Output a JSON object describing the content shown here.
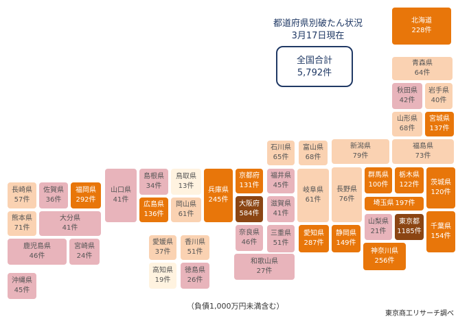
{
  "title": {
    "line1": "都道府県別破たん状況",
    "line2": "3月17日現在"
  },
  "total": {
    "label": "全国合計",
    "value": "5,792件"
  },
  "note": "（負債1,000万円未満含む）",
  "source": "東京商工リサーチ調べ",
  "colors": {
    "light_orange": "#fad2b2",
    "pink": "#e8b4bb",
    "orange": "#e8760a",
    "brown": "#8b4513",
    "cream": "#fff3e0"
  },
  "prefs": {
    "hokkaido": {
      "name": "北海道",
      "count": "228件"
    },
    "aomori": {
      "name": "青森県",
      "count": "64件"
    },
    "akita": {
      "name": "秋田県",
      "count": "42件"
    },
    "iwate": {
      "name": "岩手県",
      "count": "40件"
    },
    "yamagata": {
      "name": "山形県",
      "count": "68件"
    },
    "miyagi": {
      "name": "宮城県",
      "count": "137件"
    },
    "niigata": {
      "name": "新潟県",
      "count": "79件"
    },
    "fukushima": {
      "name": "福島県",
      "count": "73件"
    },
    "ishikawa": {
      "name": "石川県",
      "count": "65件"
    },
    "toyama": {
      "name": "富山県",
      "count": "68件"
    },
    "fukui": {
      "name": "福井県",
      "count": "45件"
    },
    "gifu": {
      "name": "岐阜県",
      "count": "61件"
    },
    "nagano": {
      "name": "長野県",
      "count": "76件"
    },
    "gunma": {
      "name": "群馬県",
      "count": "100件"
    },
    "tochigi": {
      "name": "栃木県",
      "count": "122件"
    },
    "ibaraki": {
      "name": "茨城県",
      "count": "120件"
    },
    "saitama": {
      "name": "埼玉県",
      "count": "197件"
    },
    "yamanashi": {
      "name": "山梨県",
      "count": "21件"
    },
    "tokyo": {
      "name": "東京都",
      "count": "1185件"
    },
    "chiba": {
      "name": "千葉県",
      "count": "154件"
    },
    "kanagawa": {
      "name": "神奈川県",
      "count": "256件"
    },
    "shizuoka": {
      "name": "静岡県",
      "count": "149件"
    },
    "aichi": {
      "name": "愛知県",
      "count": "287件"
    },
    "mie": {
      "name": "三重県",
      "count": "51件"
    },
    "shiga": {
      "name": "滋賀県",
      "count": "41件"
    },
    "kyoto": {
      "name": "京都府",
      "count": "131件"
    },
    "osaka": {
      "name": "大阪府",
      "count": "584件"
    },
    "nara": {
      "name": "奈良県",
      "count": "46件"
    },
    "wakayama": {
      "name": "和歌山県",
      "count": "27件"
    },
    "hyogo": {
      "name": "兵庫県",
      "count": "245件"
    },
    "tottori": {
      "name": "鳥取県",
      "count": "13件"
    },
    "shimane": {
      "name": "島根県",
      "count": "34件"
    },
    "okayama": {
      "name": "岡山県",
      "count": "61件"
    },
    "hiroshima": {
      "name": "広島県",
      "count": "136件"
    },
    "yamaguchi": {
      "name": "山口県",
      "count": "41件"
    },
    "kagawa": {
      "name": "香川県",
      "count": "51件"
    },
    "ehime": {
      "name": "愛媛県",
      "count": "37件"
    },
    "tokushima": {
      "name": "徳島県",
      "count": "26件"
    },
    "kochi": {
      "name": "高知県",
      "count": "19件"
    },
    "fukuoka": {
      "name": "福岡県",
      "count": "292件"
    },
    "saga": {
      "name": "佐賀県",
      "count": "36件"
    },
    "nagasaki": {
      "name": "長崎県",
      "count": "57件"
    },
    "kumamoto": {
      "name": "熊本県",
      "count": "71件"
    },
    "oita": {
      "name": "大分県",
      "count": "41件"
    },
    "miyazaki": {
      "name": "宮崎県",
      "count": "24件"
    },
    "kagoshima": {
      "name": "鹿児島県",
      "count": "46件"
    },
    "okinawa": {
      "name": "沖縄県",
      "count": "45件"
    }
  }
}
